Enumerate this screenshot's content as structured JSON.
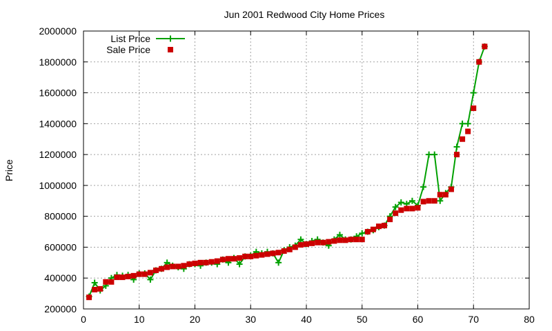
{
  "chart_data": {
    "type": "scatter",
    "title": "Jun 2001 Redwood City Home Prices",
    "xlabel": "",
    "ylabel": "Price",
    "xlim": [
      0,
      80
    ],
    "ylim": [
      200000,
      2000000
    ],
    "xticks": [
      "0",
      "10",
      "20",
      "30",
      "40",
      "50",
      "60",
      "70",
      "80"
    ],
    "yticks": [
      "200000",
      "400000",
      "600000",
      "800000",
      "1000000",
      "1200000",
      "1400000",
      "1600000",
      "1800000",
      "2000000"
    ],
    "grid": true,
    "legend_position": "top-left",
    "series": [
      {
        "name": "List Price",
        "style": "linespoints",
        "color": "#00a000",
        "x": [
          1,
          2,
          3,
          4,
          5,
          6,
          7,
          8,
          9,
          10,
          11,
          12,
          13,
          14,
          15,
          16,
          17,
          18,
          19,
          20,
          21,
          22,
          23,
          24,
          25,
          26,
          27,
          28,
          29,
          30,
          31,
          32,
          33,
          34,
          35,
          36,
          37,
          38,
          39,
          40,
          41,
          42,
          43,
          44,
          45,
          46,
          47,
          48,
          49,
          50,
          51,
          52,
          53,
          54,
          55,
          56,
          57,
          58,
          59,
          60,
          61,
          62,
          63,
          64,
          65,
          66,
          67,
          68,
          69,
          70,
          71,
          72
        ],
        "values": [
          280000,
          370000,
          320000,
          350000,
          400000,
          420000,
          415000,
          420000,
          390000,
          430000,
          430000,
          390000,
          450000,
          460000,
          500000,
          480000,
          470000,
          460000,
          490000,
          490000,
          480000,
          500000,
          500000,
          490000,
          520000,
          500000,
          530000,
          490000,
          540000,
          545000,
          570000,
          560000,
          570000,
          560000,
          500000,
          580000,
          600000,
          610000,
          650000,
          620000,
          640000,
          650000,
          630000,
          610000,
          650000,
          680000,
          650000,
          650000,
          670000,
          690000,
          700000,
          710000,
          730000,
          740000,
          800000,
          860000,
          890000,
          880000,
          900000,
          870000,
          990000,
          1200000,
          1200000,
          900000,
          950000,
          990000,
          1250000,
          1400000,
          1400000,
          1600000,
          1800000,
          1900000
        ]
      },
      {
        "name": "Sale Price",
        "style": "points",
        "color": "#cc0000",
        "x": [
          1,
          2,
          3,
          4,
          5,
          6,
          7,
          8,
          9,
          10,
          11,
          12,
          13,
          14,
          15,
          16,
          17,
          18,
          19,
          20,
          21,
          22,
          23,
          24,
          25,
          26,
          27,
          28,
          29,
          30,
          31,
          32,
          33,
          34,
          35,
          36,
          37,
          38,
          39,
          40,
          41,
          42,
          43,
          44,
          45,
          46,
          47,
          48,
          49,
          50,
          51,
          52,
          53,
          54,
          55,
          56,
          57,
          58,
          59,
          60,
          61,
          62,
          63,
          64,
          65,
          66,
          67,
          68,
          69,
          70,
          71,
          72
        ],
        "values": [
          275000,
          325000,
          330000,
          375000,
          375000,
          405000,
          405000,
          410000,
          415000,
          425000,
          425000,
          435000,
          450000,
          460000,
          470000,
          475000,
          475000,
          480000,
          490000,
          495000,
          500000,
          500000,
          505000,
          510000,
          520000,
          525000,
          525000,
          530000,
          540000,
          540000,
          545000,
          550000,
          555000,
          560000,
          565000,
          575000,
          585000,
          600000,
          615000,
          620000,
          625000,
          630000,
          630000,
          635000,
          640000,
          645000,
          645000,
          650000,
          650000,
          650000,
          700000,
          715000,
          735000,
          740000,
          780000,
          820000,
          840000,
          850000,
          850000,
          855000,
          895000,
          900000,
          900000,
          940000,
          940000,
          975000,
          1200000,
          1300000,
          1350000,
          1500000,
          1800000,
          1900000
        ]
      }
    ]
  }
}
